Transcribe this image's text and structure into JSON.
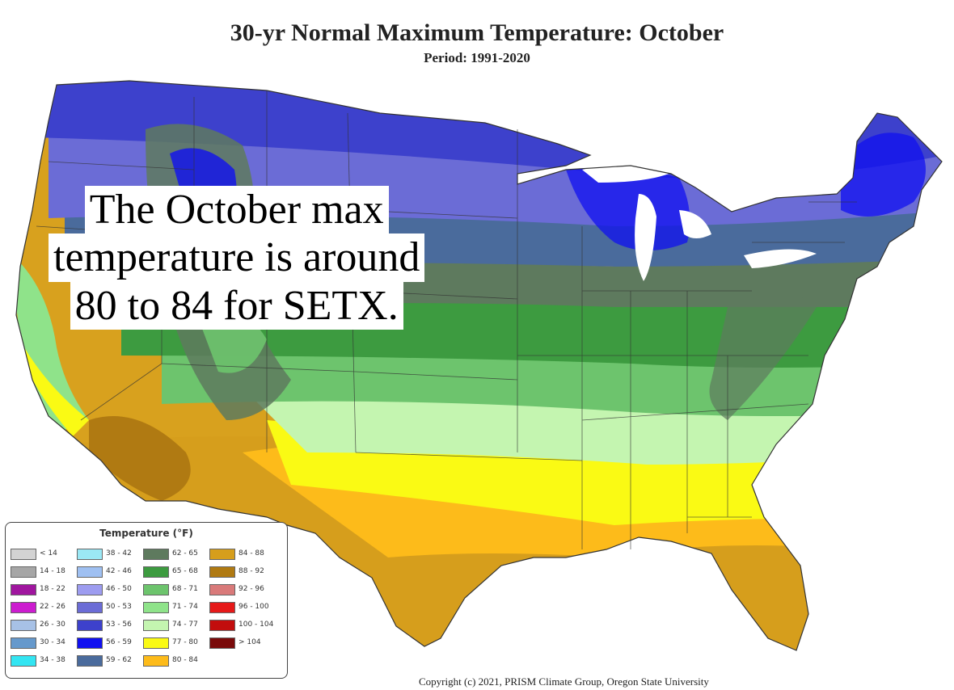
{
  "header": {
    "title": "30-yr Normal Maximum Temperature: October",
    "subtitle": "Period: 1991-2020"
  },
  "caption": {
    "lines": [
      "The October max",
      "temperature is around",
      "80 to 84 for SETX."
    ]
  },
  "legend": {
    "title": "Temperature (°F)",
    "items": [
      {
        "label": "< 14",
        "color": "#d3d3d3"
      },
      {
        "label": "14 - 18",
        "color": "#a6a6a6"
      },
      {
        "label": "18 - 22",
        "color": "#a0169f"
      },
      {
        "label": "22 - 26",
        "color": "#cc1ccf"
      },
      {
        "label": "26 - 30",
        "color": "#a7c1e6"
      },
      {
        "label": "30 - 34",
        "color": "#6699cc"
      },
      {
        "label": "34 - 38",
        "color": "#33e5f2"
      },
      {
        "label": "38 - 42",
        "color": "#9be8f5"
      },
      {
        "label": "42 - 46",
        "color": "#9fc0f2"
      },
      {
        "label": "46 - 50",
        "color": "#9d9cf0"
      },
      {
        "label": "50 - 53",
        "color": "#6b6cd6"
      },
      {
        "label": "53 - 56",
        "color": "#3d41cc"
      },
      {
        "label": "56 - 59",
        "color": "#1010f0"
      },
      {
        "label": "59 - 62",
        "color": "#4a6b9c"
      },
      {
        "label": "62 - 65",
        "color": "#5e7a5e"
      },
      {
        "label": "65 - 68",
        "color": "#3d9b40"
      },
      {
        "label": "68 - 71",
        "color": "#6dc46d"
      },
      {
        "label": "71 - 74",
        "color": "#8fe38a"
      },
      {
        "label": "74 - 77",
        "color": "#c4f5b0"
      },
      {
        "label": "77 - 80",
        "color": "#fafa14"
      },
      {
        "label": "80 - 84",
        "color": "#fdbb1a"
      },
      {
        "label": "84 - 88",
        "color": "#d69e1c"
      },
      {
        "label": "88 - 92",
        "color": "#b07a12"
      },
      {
        "label": "92 - 96",
        "color": "#d97a7a"
      },
      {
        "label": "96 - 100",
        "color": "#e61919"
      },
      {
        "label": "100 - 104",
        "color": "#c20d0d"
      },
      {
        "label": "> 104",
        "color": "#7a0a0a"
      }
    ]
  },
  "copyright": "Copyright (c) 2021, PRISM Climate Group, Oregon State University"
}
